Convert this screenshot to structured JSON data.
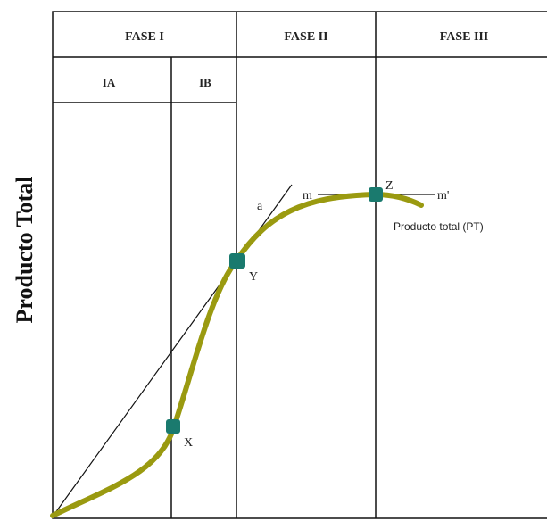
{
  "header": {
    "phase1": "FASE I",
    "phase2": "FASE II",
    "phase3": "FASE III",
    "sub1a": "IA",
    "sub1b": "IB"
  },
  "axis": {
    "ylabel": "Producto Total"
  },
  "curve": {
    "label": "Producto total (PT)",
    "color": "#9a9a10"
  },
  "points": {
    "x": "X",
    "y": "Y",
    "z": "Z",
    "color": "#1a7a6e"
  },
  "lines": {
    "ray_label": "a",
    "tangent_left": "m",
    "tangent_right": "m'"
  }
}
